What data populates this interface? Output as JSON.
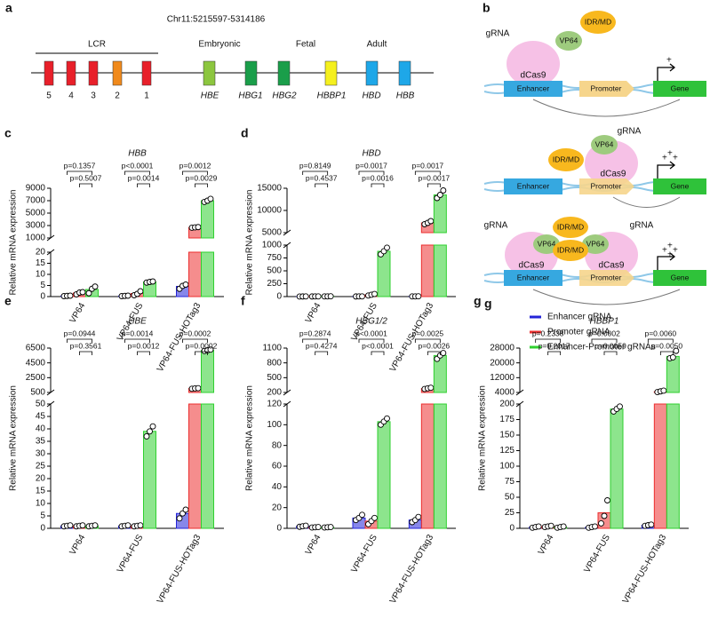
{
  "panel_a": {
    "label": "a",
    "title": "Chr11:5215597-5314186",
    "lcr": "LCR",
    "stages": [
      "Embryonic",
      "Fetal",
      "Adult"
    ],
    "sites": [
      "5",
      "4",
      "3",
      "2",
      "1"
    ],
    "genes": [
      "HBE",
      "HBG1",
      "HBG2",
      "HBBP1",
      "HBD",
      "HBB"
    ]
  },
  "panel_b": {
    "label": "b",
    "grna": "gRNA",
    "vp64": "VP64",
    "idr": "IDR/MD",
    "dcas9": "dCas9",
    "enhancer": "Enhancer",
    "promoter": "Promoter",
    "gene": "Gene",
    "plus": "+"
  },
  "legend": {
    "label": "g",
    "items": [
      {
        "label": "Enhancer gRNA",
        "color": "#2424d8"
      },
      {
        "label": "Promoter gRNA",
        "color": "#ec2f2f"
      },
      {
        "label": "Enhancer-Promoter gRNAs",
        "color": "#2fd02f"
      }
    ]
  },
  "chart_data": [
    {
      "type": "bar",
      "label": "c",
      "title": "HBB",
      "ylabel": "Relative mRNA expression",
      "categories": [
        "VP64",
        "VP64-FUS",
        "VP64-FUS-HOTag3"
      ],
      "segments": [
        {
          "ylim": [
            0,
            20
          ],
          "yticks": [
            0,
            5,
            10,
            15,
            20
          ]
        },
        {
          "ylim": [
            1000,
            9000
          ],
          "yticks": [
            1000,
            3000,
            5000,
            7000,
            9000
          ]
        }
      ],
      "series": [
        {
          "values": [
            0.3,
            0.3,
            4.6
          ],
          "points": [
            [
              0.2,
              0.3,
              0.4
            ],
            [
              0.2,
              0.3,
              0.4
            ],
            [
              3.5,
              4.8,
              5.4
            ]
          ]
        },
        {
          "values": [
            1.6,
            1.4,
            2700
          ],
          "points": [
            [
              1.0,
              1.8,
              2.0
            ],
            [
              0.6,
              1.2,
              2.4
            ],
            [
              2650,
              2700,
              2750
            ]
          ]
        },
        {
          "values": [
            3.2,
            6.6,
            7000
          ],
          "points": [
            [
              1.5,
              3.5,
              4.5
            ],
            [
              6.3,
              6.6,
              6.8
            ],
            [
              6800,
              7000,
              7300
            ]
          ]
        }
      ],
      "pvalues": [
        [
          "p=0.1357",
          "p=0.5007"
        ],
        [
          "p<0.0001",
          "p=0.0014"
        ],
        [
          "p=0.0012",
          "p=0.0029"
        ]
      ]
    },
    {
      "type": "bar",
      "label": "d",
      "title": "HBD",
      "ylabel": "Relative mRNA expression",
      "categories": [
        "VP64",
        "VP64-FUS",
        "VP64-FUS-HOTag3"
      ],
      "segments": [
        {
          "ylim": [
            0,
            1000
          ],
          "yticks": [
            0,
            250,
            500,
            750,
            1000
          ]
        },
        {
          "ylim": [
            5000,
            15000
          ],
          "yticks": [
            5000,
            10000,
            15000
          ]
        }
      ],
      "series": [
        {
          "values": [
            2,
            3,
            4
          ],
          "points": [
            [
              1,
              2,
              3
            ],
            [
              2,
              3,
              4
            ],
            [
              3,
              4,
              5
            ]
          ]
        },
        {
          "values": [
            3,
            35,
            7200
          ],
          "points": [
            [
              2,
              3,
              4
            ],
            [
              20,
              35,
              50
            ],
            [
              6900,
              7200,
              7600
            ]
          ]
        },
        {
          "values": [
            4,
            880,
            13500
          ],
          "points": [
            [
              3,
              4,
              5
            ],
            [
              820,
              880,
              950
            ],
            [
              12800,
              13500,
              14500
            ]
          ]
        }
      ],
      "pvalues": [
        [
          "p=0.8149",
          "p=0.4537"
        ],
        [
          "p=0.0017",
          "p=0.0016"
        ],
        [
          "p=0.0017",
          "p=0.0017"
        ]
      ]
    },
    {
      "type": "bar",
      "label": "e",
      "title": "HBE",
      "ylabel": "Relative mRNA expression",
      "categories": [
        "VP64",
        "VP64-FUS",
        "VP64-FUS-HOTag3"
      ],
      "segments": [
        {
          "ylim": [
            0,
            50
          ],
          "yticks": [
            0,
            5,
            10,
            15,
            20,
            25,
            30,
            35,
            40,
            45,
            50
          ]
        },
        {
          "ylim": [
            500,
            6500
          ],
          "yticks": [
            500,
            2500,
            4500,
            6500
          ]
        }
      ],
      "series": [
        {
          "values": [
            1,
            1,
            6
          ],
          "points": [
            [
              0.8,
              1,
              1.2
            ],
            [
              0.8,
              1,
              1.2
            ],
            [
              4,
              6,
              7.5
            ]
          ]
        },
        {
          "values": [
            1,
            1,
            1050
          ],
          "points": [
            [
              0.8,
              1,
              1.2
            ],
            [
              0.8,
              1,
              1.2
            ],
            [
              1000,
              1050,
              1080
            ]
          ]
        },
        {
          "values": [
            1,
            39,
            6200
          ],
          "points": [
            [
              0.8,
              1,
              1.2
            ],
            [
              37,
              39,
              41
            ],
            [
              6100,
              6200,
              6300
            ]
          ]
        }
      ],
      "pvalues": [
        [
          "p=0.0944",
          "p=0.3561"
        ],
        [
          "p=0.0014",
          "p=0.0012"
        ],
        [
          "p=0.0002",
          "p=0.0002"
        ]
      ]
    },
    {
      "type": "bar",
      "label": "f",
      "title": "HBG1/2",
      "ylabel": "Relative mRNA expression",
      "categories": [
        "VP64",
        "VP64-FUS",
        "VP64-FUS-HOTag3"
      ],
      "segments": [
        {
          "ylim": [
            0,
            120
          ],
          "yticks": [
            0,
            20,
            40,
            60,
            80,
            100,
            120
          ]
        },
        {
          "ylim": [
            200,
            1100
          ],
          "yticks": [
            200,
            500,
            800,
            1100
          ]
        }
      ],
      "series": [
        {
          "values": [
            2,
            10,
            8
          ],
          "points": [
            [
              1.5,
              2,
              2.5
            ],
            [
              8,
              10,
              13
            ],
            [
              6,
              8,
              11
            ]
          ]
        },
        {
          "values": [
            1,
            7,
            280
          ],
          "points": [
            [
              0.8,
              1,
              1.2
            ],
            [
              4,
              7,
              10
            ],
            [
              270,
              285,
              295
            ]
          ]
        },
        {
          "values": [
            1,
            103,
            950
          ],
          "points": [
            [
              0.8,
              1,
              1.2
            ],
            [
              100,
              103,
              106
            ],
            [
              880,
              950,
              1000
            ]
          ]
        }
      ],
      "pvalues": [
        [
          "p=0.2874",
          "p=0.4274"
        ],
        [
          "p<0.0001",
          "p<0.0001"
        ],
        [
          "p=0.0025",
          "p=0.0026"
        ]
      ]
    },
    {
      "type": "bar",
      "label": "g",
      "title": "HBBP1",
      "ylabel": "Relative mRNA expression",
      "categories": [
        "VP64",
        "VP64-FUS",
        "VP64-FUS-HOTag3"
      ],
      "segments": [
        {
          "ylim": [
            0,
            200
          ],
          "yticks": [
            0,
            25,
            50,
            75,
            100,
            125,
            150,
            175,
            200
          ]
        },
        {
          "ylim": [
            4000,
            28000
          ],
          "yticks": [
            4000,
            12000,
            20000,
            28000
          ]
        }
      ],
      "series": [
        {
          "values": [
            2,
            2,
            5
          ],
          "points": [
            [
              1,
              2,
              3
            ],
            [
              1,
              2,
              3
            ],
            [
              4,
              5,
              6
            ]
          ]
        },
        {
          "values": [
            3,
            25,
            4500
          ],
          "points": [
            [
              2,
              3,
              4
            ],
            [
              8,
              20,
              45
            ],
            [
              4200,
              4600,
              5000
            ]
          ]
        },
        {
          "values": [
            2,
            192,
            23500
          ],
          "points": [
            [
              1,
              2,
              3
            ],
            [
              188,
              192,
              196
            ],
            [
              22500,
              23000,
              26500
            ]
          ]
        }
      ],
      "pvalues": [
        [
          "p=0.2338",
          "p=0.2017"
        ],
        [
          "p=0.0002",
          "p=0.0059"
        ],
        [
          "p=0.0060",
          "p=0.0050"
        ]
      ]
    }
  ]
}
